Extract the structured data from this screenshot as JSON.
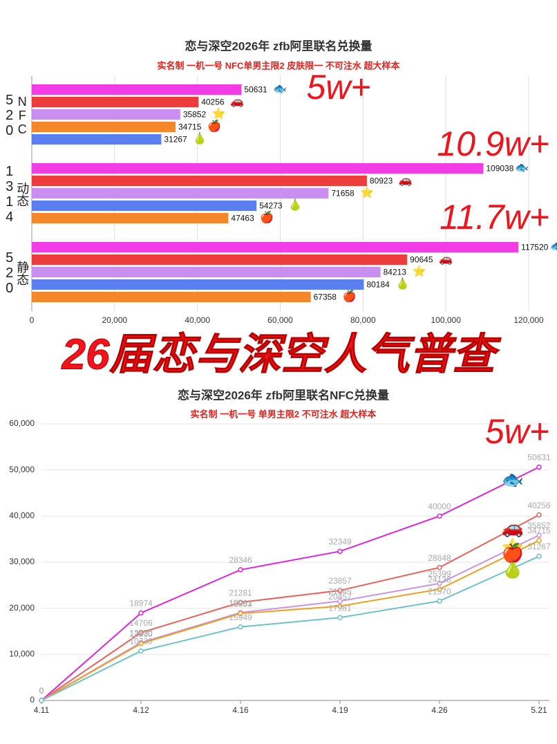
{
  "headline": "26届恋与深空人气普查",
  "chart_data": [
    {
      "type": "bar",
      "orientation": "horizontal",
      "title": "恋与深空2026年 zfb阿里联名兑换量",
      "subtitle": "实名制 一机一号 NFC单男主限2 皮肤限一 不可注水 超大样本",
      "categories": [
        {
          "num": "520",
          "name": "NFC"
        },
        {
          "num": "1314",
          "name": "动态"
        },
        {
          "num": "520",
          "name": "静态"
        }
      ],
      "series": [
        {
          "icon": "🐟",
          "color": "#f23ce6",
          "values": [
            50631,
            109038,
            117520
          ]
        },
        {
          "icon": "🚗",
          "color": "#ee3b3b",
          "values": [
            40256,
            80923,
            90645
          ]
        },
        {
          "icon": "⭐",
          "color": "#c98ef0",
          "values": [
            35852,
            71658,
            84213
          ]
        },
        {
          "icon": "🍎",
          "color": "#f5862a",
          "values": [
            34715,
            47463,
            67358
          ]
        },
        {
          "icon": "🍐",
          "color": "#5b7ff0",
          "values": [
            31267,
            54273,
            80184
          ]
        }
      ],
      "xlim": [
        0,
        125000
      ],
      "xticks": [
        0,
        {
          "value": 20000,
          "label": "20,000"
        },
        {
          "value": 40000,
          "label": "40,000"
        },
        {
          "value": 60000,
          "label": "60,000"
        },
        {
          "value": 80000,
          "label": "80,000"
        },
        {
          "value": 100000,
          "label": "100,000"
        },
        {
          "value": 120000,
          "label": "120,000"
        }
      ],
      "grid": true,
      "annotations": [
        "5w+",
        "10.9w+",
        "11.7w+"
      ]
    },
    {
      "type": "line",
      "title": "恋与深空2026年 zfb阿里联名NFC兑换量",
      "subtitle": "实名制 一机一号 单男主限2 不可注水 超大样本",
      "categories": [
        "4.11",
        "4.12",
        "4.16",
        "4.19",
        "4.26",
        "5.21"
      ],
      "series": [
        {
          "icon": "🐟",
          "color": "#e024e0",
          "values": [
            0,
            18974,
            28346,
            32349,
            40000,
            50631
          ]
        },
        {
          "icon": "🚗",
          "color": "#e8645a",
          "values": [
            0,
            14706,
            21281,
            23857,
            28848,
            40256
          ]
        },
        {
          "icon": "⭐",
          "color": "#c994e8",
          "values": [
            0,
            12550,
            19061,
            21545,
            25399,
            35852
          ]
        },
        {
          "icon": "🍎",
          "color": "#f0a020",
          "values": [
            0,
            12330,
            18853,
            20457,
            24138,
            34715
          ]
        },
        {
          "icon": "🍐",
          "color": "#6cc0d0",
          "values": [
            0,
            10730,
            15949,
            17981,
            21570,
            31267
          ]
        }
      ],
      "ylim": [
        0,
        60000
      ],
      "yticks": [
        0,
        {
          "value": 10000,
          "label": "10,000"
        },
        {
          "value": 20000,
          "label": "20,000"
        },
        {
          "value": 30000,
          "label": "30,000"
        },
        {
          "value": 40000,
          "label": "40,000"
        },
        {
          "value": 50000,
          "label": "50,000"
        },
        {
          "value": 60000,
          "label": "60,000"
        }
      ],
      "grid": true,
      "annotations": [
        "5w+"
      ]
    }
  ]
}
